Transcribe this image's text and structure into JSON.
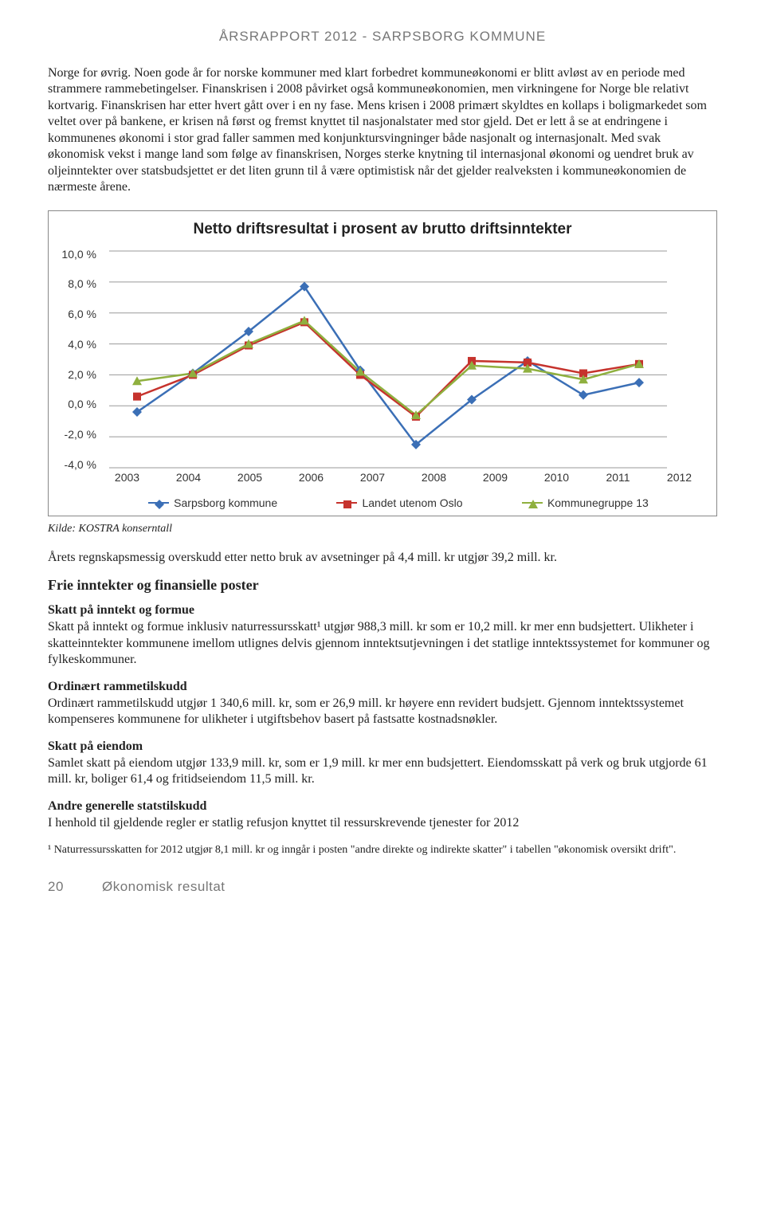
{
  "header": "ÅRSRAPPORT 2012 - SARPSBORG KOMMUNE",
  "para1": "Norge for øvrig. Noen gode år for norske kommuner med klart forbedret kommuneøkonomi er blitt avløst av en periode med strammere rammebetingelser. Finanskrisen i 2008 påvirket også kommuneøkonomien, men virkningene for Norge ble relativt kortvarig. Finanskrisen har etter hvert gått over i en ny fase. Mens krisen i 2008 primært skyldtes en kollaps i boligmarkedet som veltet over på bankene, er krisen nå først og fremst knyttet til nasjonalstater med stor gjeld. Det er lett å se at endringene i kommunenes økonomi i stor grad faller sammen med konjunktursvingninger både nasjonalt og internasjonalt. Med svak økonomisk vekst i mange land som følge av finanskrisen, Norges sterke knytning til internasjonal økonomi og uendret bruk av oljeinntekter over statsbudsjettet er det liten grunn til å være optimistisk når det gjelder realveksten i kommuneøkonomien de nærmeste årene.",
  "chart": {
    "title": "Netto driftsresultat i prosent av brutto driftsinntekter",
    "type": "line",
    "background": "#ffffff",
    "grid_color": "#999999",
    "years": [
      "2003",
      "2004",
      "2005",
      "2006",
      "2007",
      "2008",
      "2009",
      "2010",
      "2011",
      "2012"
    ],
    "ylim": [
      -4.0,
      10.0
    ],
    "ytick_step": 2.0,
    "ylabels": [
      "10,0 %",
      "8,0 %",
      "6,0 %",
      "4,0 %",
      "2,0 %",
      "0,0 %",
      "-2,0 %",
      "-4,0 %"
    ],
    "series": [
      {
        "name": "Sarpsborg kommune",
        "color": "#3b6fb6",
        "marker": "diamond",
        "values": [
          -0.4,
          2.1,
          4.8,
          7.7,
          2.3,
          -2.5,
          0.4,
          2.9,
          0.7,
          1.5
        ]
      },
      {
        "name": "Landet utenom Oslo",
        "color": "#c6332d",
        "marker": "square",
        "values": [
          0.6,
          2.0,
          3.9,
          5.4,
          2.0,
          -0.7,
          2.9,
          2.8,
          2.1,
          2.7
        ]
      },
      {
        "name": "Kommunegruppe 13",
        "color": "#8fb03f",
        "marker": "triangle",
        "values": [
          1.6,
          2.1,
          4.0,
          5.5,
          2.2,
          -0.6,
          2.6,
          2.4,
          1.7,
          2.7
        ]
      }
    ]
  },
  "kilde": "Kilde: KOSTRA konserntall",
  "para2": "Årets regnskapsmessig overskudd etter netto bruk av avsetninger på 4,4 mill. kr utgjør 39,2 mill. kr.",
  "h2_frie": "Frie inntekter og finansielle poster",
  "h3_skatt_inntekt": "Skatt på inntekt og formue",
  "p_skatt_inntekt": "Skatt på inntekt og formue inklusiv naturressursskatt¹ utgjør 988,3 mill. kr som er 10,2 mill. kr mer enn budsjettert. Ulikheter i skatteinntekter kommunene imellom utlignes delvis gjennom inntektsutjevningen i det statlige inntektssystemet for kommuner og fylkeskommuner.",
  "h3_ramme": "Ordinært rammetilskudd",
  "p_ramme": "Ordinært rammetilskudd utgjør 1 340,6 mill. kr, som er 26,9 mill. kr høyere enn revidert budsjett. Gjennom inntektssystemet kompenseres kommunene for ulikheter i utgiftsbehov basert på fastsatte kostnadsnøkler.",
  "h3_eiendom": "Skatt på eiendom",
  "p_eiendom": "Samlet skatt på eiendom utgjør 133,9 mill. kr, som er 1,9 mill. kr mer enn budsjettert. Eiendomsskatt på verk og bruk utgjorde 61 mill. kr, boliger 61,4 og fritidseiendom 11,5 mill. kr.",
  "h3_andre": "Andre generelle statstilskudd",
  "p_andre": "I henhold til gjeldende regler er statlig refusjon knyttet til ressurskrevende tjenester for 2012",
  "footnote": "¹ Naturressursskatten for 2012 utgjør 8,1 mill. kr og inngår i posten \"andre direkte og indirekte skatter\" i tabellen \"økonomisk oversikt drift\".",
  "footer_page": "20",
  "footer_section": "Økonomisk resultat"
}
